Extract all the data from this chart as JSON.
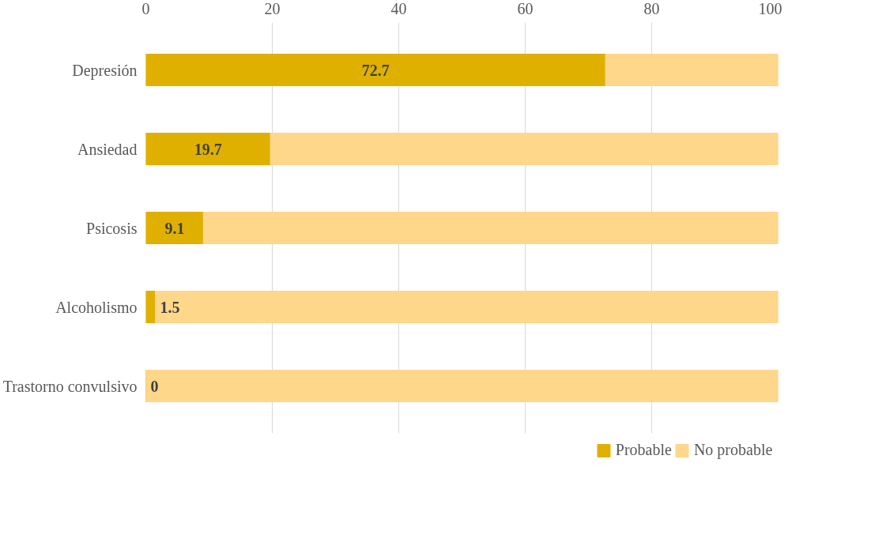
{
  "chart_data": {
    "type": "bar",
    "orientation": "horizontal",
    "stacked": true,
    "categories": [
      "Depresión",
      "Ansiedad",
      "Psicosis",
      "Alcoholismo",
      "Trastorno convulsivo"
    ],
    "series": [
      {
        "name": "Probable",
        "color": "#e0b000",
        "values": [
          72.7,
          19.7,
          9.1,
          1.5,
          0
        ]
      },
      {
        "name": "No probable",
        "color": "#ffd78a",
        "values": [
          27.3,
          80.3,
          90.9,
          98.5,
          100
        ]
      }
    ],
    "value_labels": [
      "72.7",
      "19.7",
      "9.1",
      "1.5",
      "0"
    ],
    "xlim": [
      0,
      100
    ],
    "xticks": [
      0,
      20,
      40,
      60,
      80,
      100
    ],
    "grid": "x",
    "legend": "bottom"
  }
}
